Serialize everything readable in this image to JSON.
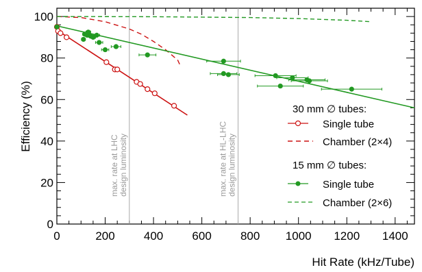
{
  "colors": {
    "tube30": "#cc1111",
    "tube15": "#229922",
    "refline": "#aaaaaa",
    "axis": "#000000",
    "vtext": "#9a9a9a"
  },
  "chart_data": {
    "type": "scatter",
    "xlabel": "Hit Rate (kHz/Tube)",
    "ylabel": "Efficiency (%)",
    "xlim": [
      0,
      1480
    ],
    "ylim": [
      0,
      104
    ],
    "xticks": [
      0,
      200,
      400,
      600,
      800,
      1000,
      1200,
      1400
    ],
    "yticks": [
      0,
      20,
      40,
      60,
      80,
      100
    ],
    "grid": false,
    "legend_position": "right",
    "reference_lines": [
      {
        "x": 300,
        "lines": [
          "max. rate at LHC",
          "design luminosity"
        ]
      },
      {
        "x": 750,
        "lines": [
          "max. rate at HL-LHC",
          "design luminosity"
        ]
      }
    ],
    "legend": {
      "group30_title": "30 mm ∅ tubes:",
      "group15_title": "15 mm ∅ tubes:",
      "single_tube": "Single tube",
      "chamber_2x4": "Chamber (2×4)",
      "chamber_2x6": "Chamber (2×6)"
    },
    "series": [
      {
        "name": "Single tube",
        "group": "30 mm",
        "kind": "points",
        "points": [
          {
            "x": 0,
            "y": 95,
            "xerr": 0
          },
          {
            "x": 5,
            "y": 93,
            "xerr": 0
          },
          {
            "x": 15,
            "y": 92,
            "xerr": 0
          },
          {
            "x": 40,
            "y": 90,
            "xerr": 0
          },
          {
            "x": 205,
            "y": 78,
            "xerr": 0
          },
          {
            "x": 240,
            "y": 74.5,
            "xerr": 0
          },
          {
            "x": 250,
            "y": 74.5,
            "xerr": 0
          },
          {
            "x": 330,
            "y": 68.5,
            "xerr": 0
          },
          {
            "x": 345,
            "y": 67.5,
            "xerr": 0
          },
          {
            "x": 375,
            "y": 65,
            "xerr": 0
          },
          {
            "x": 405,
            "y": 63,
            "xerr": 0
          },
          {
            "x": 485,
            "y": 57,
            "xerr": 0
          }
        ]
      },
      {
        "name": "Single tube fit",
        "group": "30 mm",
        "kind": "fit",
        "x": [
          0,
          540
        ],
        "y": [
          93.5,
          52.5
        ]
      },
      {
        "name": "Chamber (2×4)",
        "group": "30 mm",
        "kind": "curve",
        "x": [
          0,
          100,
          200,
          300,
          350,
          400,
          450,
          500,
          510
        ],
        "y": [
          100,
          99.5,
          97.5,
          94,
          91.5,
          88,
          84,
          79,
          76.5
        ]
      },
      {
        "name": "Single tube",
        "group": "15 mm",
        "kind": "points",
        "points": [
          {
            "x": 0,
            "y": 95,
            "xerr": 0
          },
          {
            "x": 110,
            "y": 89,
            "xerr": 8
          },
          {
            "x": 115,
            "y": 91.5,
            "xerr": 8
          },
          {
            "x": 125,
            "y": 91,
            "xerr": 10
          },
          {
            "x": 130,
            "y": 92.5,
            "xerr": 10
          },
          {
            "x": 140,
            "y": 90.5,
            "xerr": 10
          },
          {
            "x": 150,
            "y": 90,
            "xerr": 10
          },
          {
            "x": 165,
            "y": 91,
            "xerr": 12
          },
          {
            "x": 175,
            "y": 87.5,
            "xerr": 15
          },
          {
            "x": 200,
            "y": 84,
            "xerr": 15
          },
          {
            "x": 245,
            "y": 85.5,
            "xerr": 20
          },
          {
            "x": 375,
            "y": 81.5,
            "xerr": 35
          },
          {
            "x": 690,
            "y": 78.5,
            "xerr": 70
          },
          {
            "x": 690,
            "y": 72.5,
            "xerr": 55
          },
          {
            "x": 710,
            "y": 72,
            "xerr": 45
          },
          {
            "x": 905,
            "y": 71.5,
            "xerr": 85
          },
          {
            "x": 925,
            "y": 66.5,
            "xerr": 95
          },
          {
            "x": 975,
            "y": 70.5,
            "xerr": 65
          },
          {
            "x": 1035,
            "y": 69.5,
            "xerr": 75
          },
          {
            "x": 1045,
            "y": 69,
            "xerr": 75
          },
          {
            "x": 1220,
            "y": 65,
            "xerr": 125
          }
        ]
      },
      {
        "name": "Single tube fit",
        "group": "15 mm",
        "kind": "fit",
        "x": [
          0,
          1480
        ],
        "y": [
          95.5,
          56
        ]
      },
      {
        "name": "Chamber (2×6)",
        "group": "15 mm",
        "kind": "curve",
        "x": [
          0,
          400,
          800,
          1000,
          1200,
          1300
        ],
        "y": [
          100,
          99.9,
          99.5,
          99,
          98.2,
          97.5
        ]
      }
    ]
  }
}
